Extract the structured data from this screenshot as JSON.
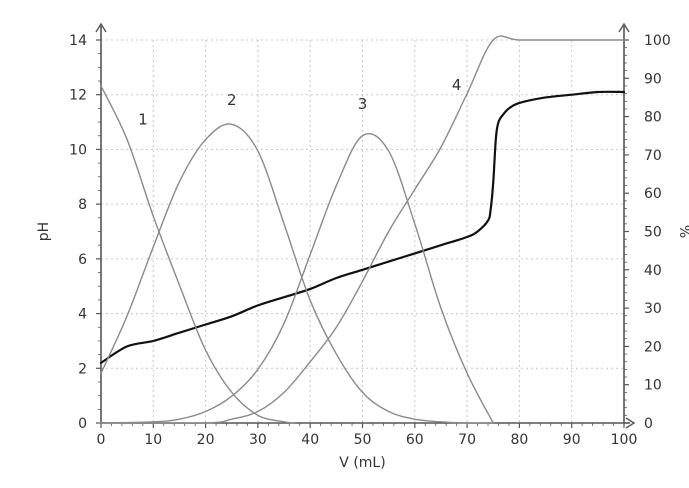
{
  "chart_data": {
    "type": "line",
    "xlabel": "V (mL)",
    "ylabel_left": "pH",
    "ylabel_right": "%",
    "xlim": [
      0,
      100
    ],
    "ylim_left": [
      0,
      14
    ],
    "ylim_right": [
      0,
      100
    ],
    "x_ticks": [
      "0",
      "10",
      "20",
      "30",
      "40",
      "50",
      "60",
      "70",
      "80",
      "90",
      "100"
    ],
    "y_left_ticks": [
      "0",
      "2",
      "4",
      "6",
      "8",
      "10",
      "12",
      "14"
    ],
    "y_right_ticks": [
      "0",
      "10",
      "20",
      "30",
      "40",
      "50",
      "60",
      "70",
      "80",
      "90",
      "100"
    ],
    "grid": true,
    "series": [
      {
        "axis": "left",
        "style": "solid-black",
        "x": [
          0,
          5,
          10,
          15,
          20,
          25,
          30,
          35,
          40,
          45,
          50,
          55,
          60,
          65,
          70,
          72,
          74,
          74.5,
          75,
          75.5,
          76,
          77,
          78,
          80,
          85,
          90,
          95,
          100
        ],
        "y": [
          2.2,
          2.8,
          3.0,
          3.3,
          3.6,
          3.9,
          4.3,
          4.6,
          4.9,
          5.3,
          5.6,
          5.9,
          6.2,
          6.5,
          6.8,
          7.0,
          7.4,
          7.8,
          8.8,
          10.4,
          11.0,
          11.3,
          11.5,
          11.7,
          11.9,
          12.0,
          12.1,
          12.1
        ]
      },
      {
        "label": "1",
        "axis": "right",
        "x": [
          0,
          5,
          10,
          15,
          20,
          25,
          30,
          35,
          37
        ],
        "y": [
          88,
          74,
          54,
          36,
          19,
          8,
          2,
          0.3,
          0
        ]
      },
      {
        "label": "2",
        "axis": "right",
        "x": [
          0,
          5,
          10,
          15,
          20,
          25,
          30,
          35,
          40,
          45,
          50,
          55,
          60,
          65,
          70,
          75
        ],
        "y": [
          13,
          28,
          46,
          63,
          74,
          78,
          71,
          52,
          32,
          18,
          8,
          3,
          1,
          0.3,
          0,
          0
        ]
      },
      {
        "label": "3",
        "axis": "right",
        "x": [
          0,
          10,
          15,
          20,
          25,
          30,
          35,
          40,
          45,
          50,
          55,
          60,
          65,
          70,
          75
        ],
        "y": [
          0,
          0.3,
          1,
          3,
          7,
          14,
          26,
          44,
          62,
          75,
          71,
          52,
          30,
          13,
          0
        ]
      },
      {
        "label": "4",
        "axis": "right",
        "x": [
          0,
          20,
          25,
          30,
          35,
          40,
          45,
          50,
          55,
          60,
          65,
          70,
          75,
          80,
          90,
          100
        ],
        "y": [
          0,
          0,
          1,
          3,
          8,
          16,
          25,
          37,
          50,
          61,
          72,
          86,
          100,
          100,
          100,
          100
        ]
      }
    ],
    "curve_labels": [
      {
        "text": "1",
        "x": 8,
        "y_right": 78
      },
      {
        "text": "2",
        "x": 25,
        "y_right": 83
      },
      {
        "text": "3",
        "x": 50,
        "y_right": 82
      },
      {
        "text": "4",
        "x": 68,
        "y_right": 87
      }
    ],
    "colors": {
      "ph_curve": "#111111",
      "species_curves": "#8a8a8a",
      "axes": "#555555",
      "grid": "#c8c8c8"
    }
  }
}
